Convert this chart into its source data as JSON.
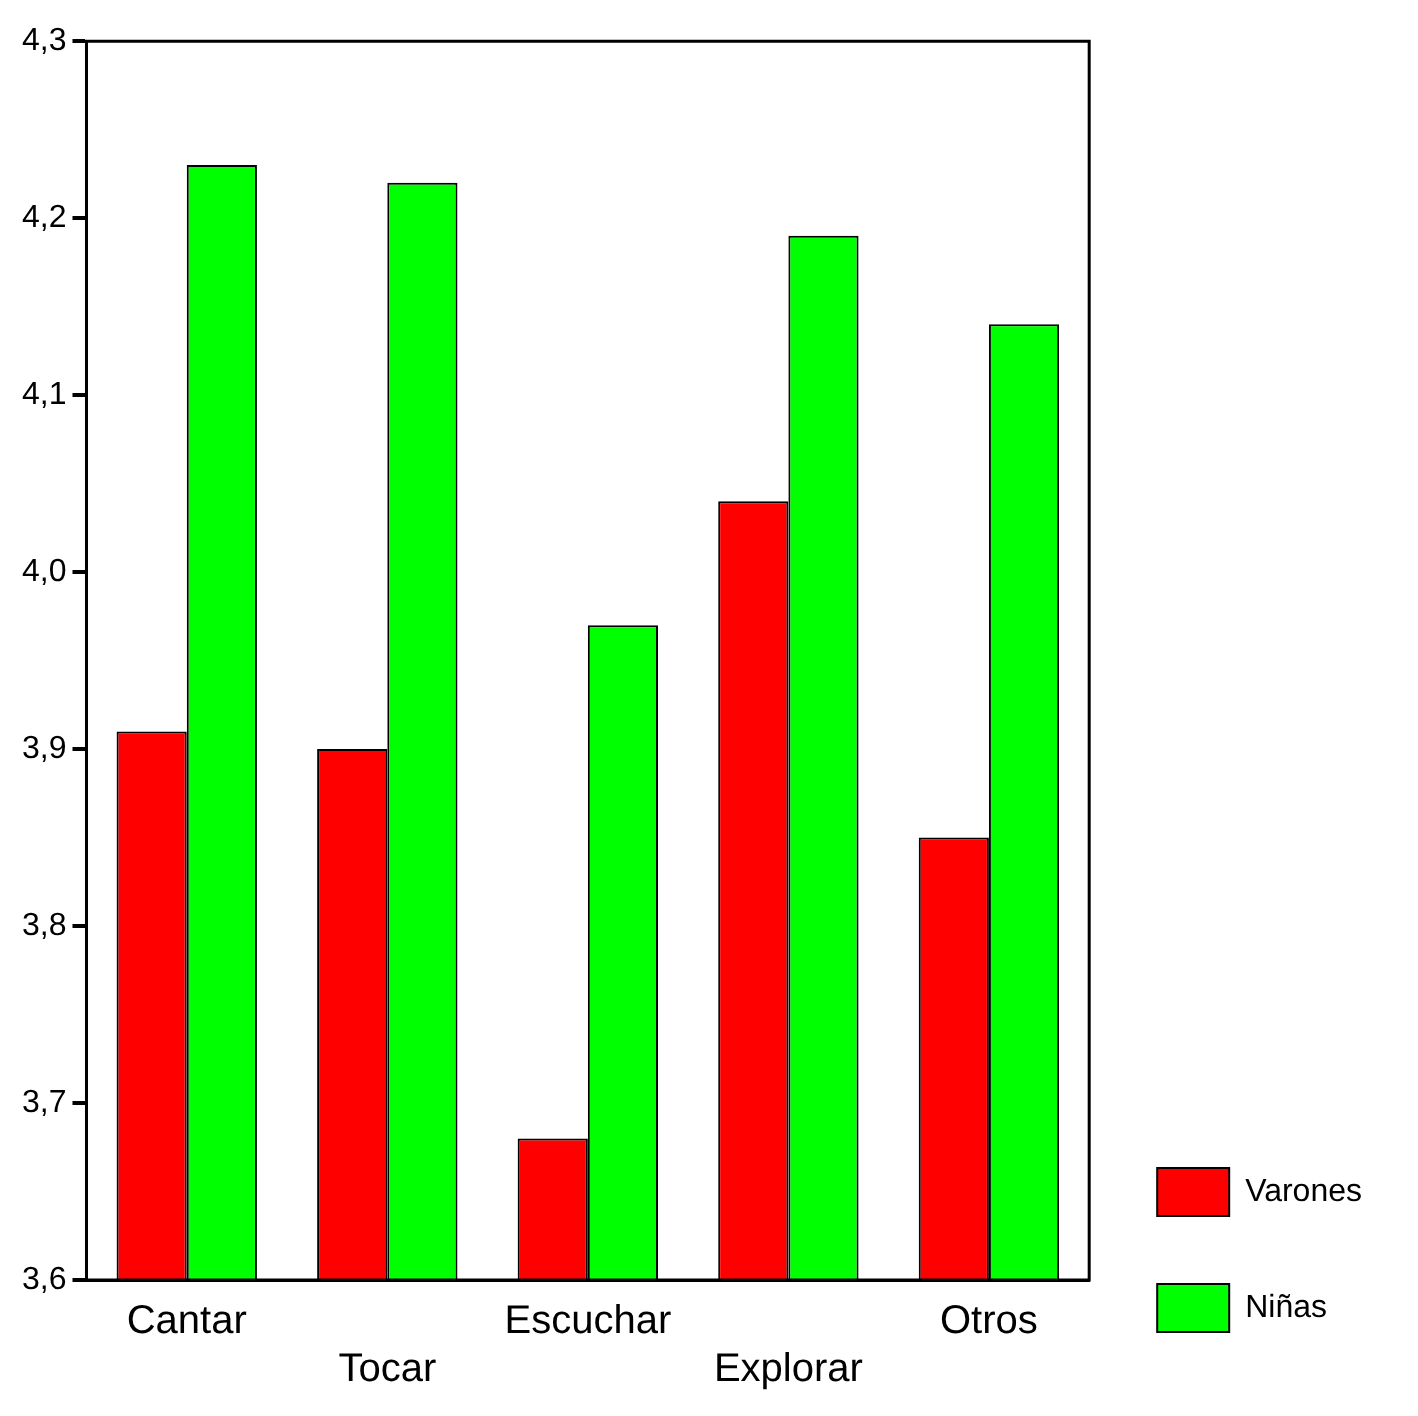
{
  "chart_data": {
    "type": "bar",
    "categories": [
      "Cantar",
      "Tocar",
      "Escuchar",
      "Explorar",
      "Otros"
    ],
    "series": [
      {
        "name": "Varones",
        "color": "#ff0000",
        "values": [
          3.91,
          3.9,
          3.68,
          4.04,
          3.85
        ]
      },
      {
        "name": "Niñas",
        "color": "#00ff00",
        "values": [
          4.23,
          4.22,
          3.97,
          4.19,
          4.14
        ]
      }
    ],
    "ylim": [
      3.6,
      4.3
    ],
    "yticks": [
      {
        "value": 3.6,
        "label": "3,6"
      },
      {
        "value": 3.7,
        "label": "3,7"
      },
      {
        "value": 3.8,
        "label": "3,8"
      },
      {
        "value": 3.9,
        "label": "3,9"
      },
      {
        "value": 4.0,
        "label": "4,0"
      },
      {
        "value": 4.1,
        "label": "4,1"
      },
      {
        "value": 4.2,
        "label": "4,2"
      },
      {
        "value": 4.3,
        "label": "4,3"
      }
    ],
    "grid": false,
    "legend": "right"
  }
}
